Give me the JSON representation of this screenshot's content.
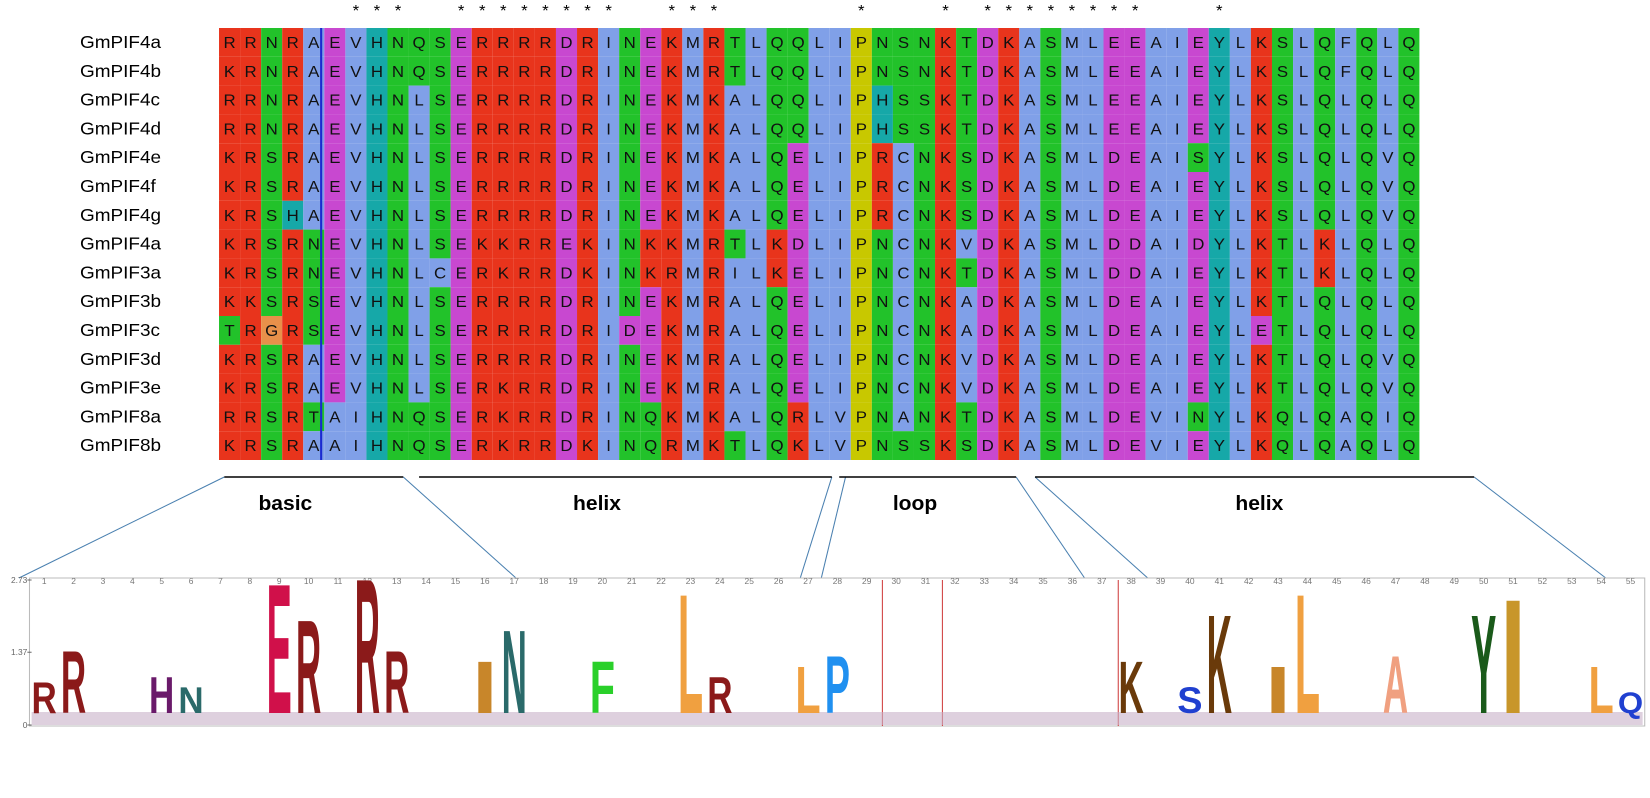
{
  "alignment": {
    "conservation": "      ***  ********  ***      *   * ********   *         ",
    "sequences": [
      {
        "name": "GmPIF4a",
        "residues": "RRNRAEVHNQSERRRRDRINEKMRTLQQLIPNSNKTDKASMLEEAIEYLKSLQFQLQ"
      },
      {
        "name": "GmPIF4b",
        "residues": "KRNRAEVHNQSERRRRDRINEKMRTLQQLIPNSNKTDKASMLEEAIEYLKSLQFQLQ"
      },
      {
        "name": "GmPIF4c",
        "residues": "RRNRAEVHNLSERRRRDRINEKMKALQQLIPHSSKTDKASMLEEAIEYLKSLQLQLQ"
      },
      {
        "name": "GmPIF4d",
        "residues": "RRNRAEVHNLSERRRRDRINEKMKALQQLIPHSSKTDKASMLEEAIEYLKSLQLQLQ"
      },
      {
        "name": "GmPIF4e",
        "residues": "KRSRAEVHNLSERRRRDRINEKMKALQELIPRCNKSDKASMLDEAISYLKSLQLQVQ"
      },
      {
        "name": "GmPIF4f",
        "residues": "KRSRAEVHNLSERRRRDRINEKMKALQELIPRCNKSDKASMLDEAIEYLKSLQLQVQ"
      },
      {
        "name": "GmPIF4g",
        "residues": "KRSHAEVHNLSERRRRDRINEKMKALQELIPRCNKSDKASMLDEAIEYLKSLQLQVQ"
      },
      {
        "name": "GmPIF4a",
        "residues": "KRSRNEVHNLSEKKRREKINKKMRTLKDLIPNCNKVDKASMLDDAIDYLKTLKLQLQ"
      },
      {
        "name": "GmPIF3a",
        "residues": "KRSRNEVHNLCERKRRDKINKRMRILKELIPNCNKTDKASMLDDAIEYLKTLKLQLQ"
      },
      {
        "name": "GmPIF3b",
        "residues": "KKSRSEVHNLSERRRRDRINEKMRALQELIPNCNKADKASMLDEAIEYLKTLQLQLQ"
      },
      {
        "name": "GmPIF3c",
        "residues": "TRGRSEVHNLSERRRRDRIDEKMRALQELIPNCNKADKASMLDEAIEYLETLQLQLQ"
      },
      {
        "name": "GmPIF3d",
        "residues": "KRSRAEVHNLSERRRRDRINEKMRALQELIPNCNKVDKASMLDEAIEYLKTLQLQVQ"
      },
      {
        "name": "GmPIF3e",
        "residues": "KRSRAEVHNLSERKRRDRINEKMRALQELIPNCNKVDKASMLDEAIEYLKTLQLQVQ"
      },
      {
        "name": "GmPIF8a",
        "residues": "RRSRTAIHNQSERKRRDRINQKMKALQRLVPNANKTDKASMLDEVINYLKQLQAQIQ"
      },
      {
        "name": "GmPIF8b",
        "residues": "KRSRAAIHNQSERKRRDKINQRMKTLQKLVPNSSKSDKASMLDEVIEYLKQLQAQLQ"
      }
    ]
  },
  "residue_colors": {
    "R": "#e8341c",
    "K": "#e8341c",
    "E": "#c848d0",
    "D": "#c848d0",
    "N": "#22c22a",
    "Q": "#22c22a",
    "S": "#22c22a",
    "T": "#22c22a",
    "A": "#80a0e8",
    "I": "#80a0e8",
    "L": "#80a0e8",
    "M": "#80a0e8",
    "V": "#80a0e8",
    "F": "#80a0e8",
    "C": "#80a0e8",
    "H": "#16a8a8",
    "Y": "#16a8a8",
    "P": "#c8c800",
    "G": "#e8904a"
  },
  "regions": [
    "basic",
    "helix",
    "loop",
    "helix"
  ],
  "logo": {
    "ylim": [
      0,
      2.73
    ],
    "yticks": [
      {
        "value": 2.73,
        "label": "2.73"
      },
      {
        "value": 1.37,
        "label": "1.37"
      },
      0
    ],
    "positions": [
      1,
      2,
      3,
      4,
      5,
      6,
      7,
      8,
      9,
      10,
      11,
      12,
      13,
      14,
      15,
      16,
      17,
      18,
      19,
      20,
      21,
      22,
      23,
      24,
      25,
      26,
      27,
      28,
      29,
      30,
      31,
      32,
      33,
      34,
      35,
      36,
      37,
      38,
      39,
      40,
      41,
      42,
      43,
      44,
      45,
      46,
      47,
      48,
      49,
      50,
      51,
      52,
      53,
      54,
      55
    ],
    "letters": [
      {
        "position": 1,
        "letter": "R",
        "height": 0.6,
        "color": "#8b1a1a"
      },
      {
        "position": 2,
        "letter": "R",
        "height": 1.2,
        "color": "#8b1a1a"
      },
      {
        "position": 5,
        "letter": "H",
        "height": 0.7,
        "color": "#6a1a6a"
      },
      {
        "position": 6,
        "letter": "N",
        "height": 0.5,
        "color": "#2a6a6a"
      },
      {
        "position": 9,
        "letter": "E",
        "height": 2.5,
        "color": "#d0104a"
      },
      {
        "position": 10,
        "letter": "R",
        "height": 1.8,
        "color": "#8b1a1a"
      },
      {
        "position": 12,
        "letter": "R",
        "height": 2.6,
        "color": "#8b1a1a"
      },
      {
        "position": 13,
        "letter": "R",
        "height": 1.2,
        "color": "#8b1a1a"
      },
      {
        "position": 16,
        "letter": "I",
        "height": 1.0,
        "color": "#c8862a"
      },
      {
        "position": 17,
        "letter": "N",
        "height": 1.6,
        "color": "#2a6a6a"
      },
      {
        "position": 20,
        "letter": "F",
        "height": 1.0,
        "color": "#2ad02a"
      },
      {
        "position": 23,
        "letter": "L",
        "height": 2.3,
        "color": "#f0a040"
      },
      {
        "position": 24,
        "letter": "R",
        "height": 0.7,
        "color": "#8b1a1a"
      },
      {
        "position": 27,
        "letter": "L",
        "height": 0.9,
        "color": "#f0a040"
      },
      {
        "position": 28,
        "letter": "P",
        "height": 1.1,
        "color": "#2090f0"
      },
      {
        "position": 38,
        "letter": "K",
        "height": 1.0,
        "color": "#6a3a0a"
      },
      {
        "position": 40,
        "letter": "S",
        "height": 0.5,
        "color": "#2040d0"
      },
      {
        "position": 41,
        "letter": "K",
        "height": 1.9,
        "color": "#6a3a0a"
      },
      {
        "position": 43,
        "letter": "I",
        "height": 0.9,
        "color": "#c8862a"
      },
      {
        "position": 44,
        "letter": "L",
        "height": 2.3,
        "color": "#f0a040"
      },
      {
        "position": 47,
        "letter": "A",
        "height": 1.1,
        "color": "#f0a080"
      },
      {
        "position": 50,
        "letter": "Y",
        "height": 1.9,
        "color": "#1a5a1a"
      },
      {
        "position": 51,
        "letter": "I",
        "height": 2.2,
        "color": "#c8962a"
      },
      {
        "position": 54,
        "letter": "L",
        "height": 0.9,
        "color": "#f0a040"
      },
      {
        "position": 55,
        "letter": "Q",
        "height": 0.4,
        "color": "#2040d0"
      }
    ]
  }
}
